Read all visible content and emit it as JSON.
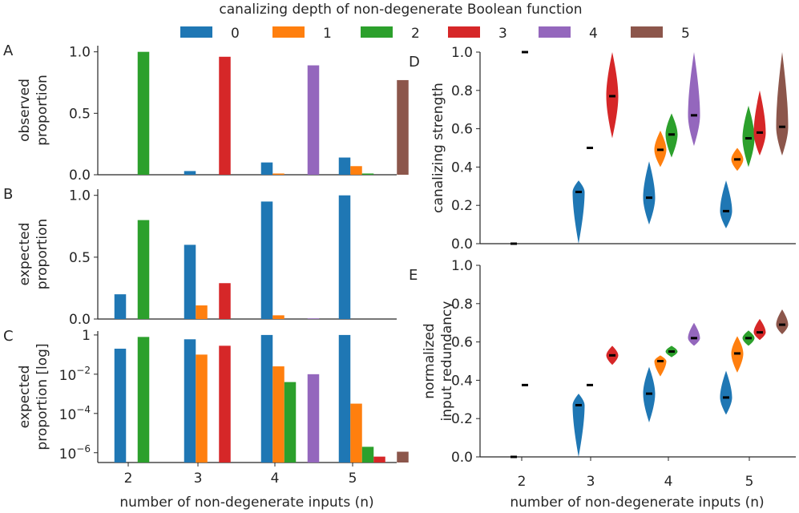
{
  "figure": {
    "legend_title": "canalizing depth of non-degenerate Boolean function",
    "legend_entries": [
      "0",
      "1",
      "2",
      "3",
      "4",
      "5"
    ],
    "colors": [
      "#1f77b4",
      "#ff7f0e",
      "#2ca02c",
      "#d62728",
      "#9467bd",
      "#8c564b"
    ],
    "panel_letters": [
      "A",
      "B",
      "C",
      "D",
      "E"
    ],
    "xlabel": "number of non-degenerate inputs (n)"
  },
  "chart_data": [
    {
      "panel": "A",
      "type": "bar",
      "ylabel": [
        "observed",
        "proportion"
      ],
      "categories": [
        "2",
        "3",
        "4",
        "5"
      ],
      "ylim": [
        0,
        1.05
      ],
      "yticks": [
        "0.0",
        "0.5",
        "1.0"
      ],
      "series": [
        {
          "name": "0",
          "values": [
            0,
            0.03,
            0.1,
            0.14
          ]
        },
        {
          "name": "1",
          "values": [
            0,
            0,
            0.01,
            0.07
          ]
        },
        {
          "name": "2",
          "values": [
            1.0,
            0,
            0,
            0.01
          ]
        },
        {
          "name": "3",
          "values": [
            0,
            0.96,
            0,
            0
          ]
        },
        {
          "name": "4",
          "values": [
            0,
            0,
            0.89,
            0
          ]
        },
        {
          "name": "5",
          "values": [
            0,
            0,
            0,
            0.77
          ]
        }
      ]
    },
    {
      "panel": "B",
      "type": "bar",
      "ylabel": [
        "expected",
        "proportion"
      ],
      "categories": [
        "2",
        "3",
        "4",
        "5"
      ],
      "ylim": [
        0,
        1.05
      ],
      "yticks": [
        "0.0",
        "0.5",
        "1.0"
      ],
      "series": [
        {
          "name": "0",
          "values": [
            0.2,
            0.6,
            0.95,
            1.0
          ]
        },
        {
          "name": "1",
          "values": [
            0,
            0.11,
            0.03,
            0
          ]
        },
        {
          "name": "2",
          "values": [
            0.8,
            0,
            0,
            0
          ]
        },
        {
          "name": "3",
          "values": [
            0,
            0.29,
            0,
            0
          ]
        },
        {
          "name": "4",
          "values": [
            0,
            0,
            0.005,
            0
          ]
        },
        {
          "name": "5",
          "values": [
            0,
            0,
            0,
            0
          ]
        }
      ]
    },
    {
      "panel": "C",
      "type": "bar",
      "ylabel": [
        "expected",
        "proportion [log]"
      ],
      "categories": [
        "2",
        "3",
        "4",
        "5"
      ],
      "log": true,
      "ylim_log10": [
        -6.5,
        0.2
      ],
      "yticks": [
        "1",
        "10^-2",
        "10^-4",
        "10^-6"
      ],
      "series": [
        {
          "name": "0",
          "log10_values": [
            -0.7,
            -0.22,
            0,
            0
          ]
        },
        {
          "name": "1",
          "log10_values": [
            null,
            -1.0,
            -1.6,
            -3.5
          ]
        },
        {
          "name": "2",
          "log10_values": [
            -0.1,
            null,
            -2.4,
            -5.7
          ]
        },
        {
          "name": "3",
          "log10_values": [
            null,
            -0.55,
            null,
            -6.2
          ]
        },
        {
          "name": "4",
          "log10_values": [
            null,
            null,
            -2.0,
            null
          ]
        },
        {
          "name": "5",
          "log10_values": [
            null,
            null,
            null,
            -5.95
          ]
        }
      ]
    },
    {
      "panel": "D",
      "type": "violin",
      "ylabel": [
        "canalizing strength"
      ],
      "categories": [
        "2",
        "3",
        "4",
        "5"
      ],
      "ylim": [
        0,
        1.0
      ],
      "yticks": [
        "0.0",
        "0.2",
        "0.4",
        "0.6",
        "0.8",
        "1.0"
      ],
      "groups": [
        {
          "n": 2,
          "depth": 0,
          "median": 0.0
        },
        {
          "n": 2,
          "depth": 1,
          "median": 1.0
        },
        {
          "n": 3,
          "depth": 0,
          "median": 0.27,
          "min": 0.0,
          "max": 0.33
        },
        {
          "n": 3,
          "depth": 1,
          "median": 0.5
        },
        {
          "n": 3,
          "depth": 3,
          "median": 0.77,
          "min": 0.55,
          "max": 1.0
        },
        {
          "n": 4,
          "depth": 0,
          "median": 0.24,
          "min": 0.1,
          "max": 0.43
        },
        {
          "n": 4,
          "depth": 1,
          "median": 0.49,
          "min": 0.4,
          "max": 0.59
        },
        {
          "n": 4,
          "depth": 2,
          "median": 0.57,
          "min": 0.45,
          "max": 0.68
        },
        {
          "n": 4,
          "depth": 4,
          "median": 0.67,
          "min": 0.51,
          "max": 1.0
        },
        {
          "n": 5,
          "depth": 0,
          "median": 0.17,
          "min": 0.08,
          "max": 0.33
        },
        {
          "n": 5,
          "depth": 1,
          "median": 0.44,
          "min": 0.38,
          "max": 0.5
        },
        {
          "n": 5,
          "depth": 2,
          "median": 0.55,
          "min": 0.4,
          "max": 0.72
        },
        {
          "n": 5,
          "depth": 3,
          "median": 0.58,
          "min": 0.46,
          "max": 0.8
        },
        {
          "n": 5,
          "depth": 5,
          "median": 0.61,
          "min": 0.46,
          "max": 1.0
        }
      ]
    },
    {
      "panel": "E",
      "type": "violin",
      "ylabel": [
        "normalized",
        "input redundancy"
      ],
      "categories": [
        "2",
        "3",
        "4",
        "5"
      ],
      "ylim": [
        0,
        1.0
      ],
      "yticks": [
        "0.0",
        "0.2",
        "0.4",
        "0.6",
        "0.8",
        "1.0"
      ],
      "groups": [
        {
          "n": 2,
          "depth": 0,
          "median": 0.0
        },
        {
          "n": 2,
          "depth": 1,
          "median": 0.375
        },
        {
          "n": 3,
          "depth": 0,
          "median": 0.27,
          "min": 0.0,
          "max": 0.33
        },
        {
          "n": 3,
          "depth": 1,
          "median": 0.375
        },
        {
          "n": 3,
          "depth": 3,
          "median": 0.53,
          "min": 0.48,
          "max": 0.58
        },
        {
          "n": 4,
          "depth": 0,
          "median": 0.33,
          "min": 0.18,
          "max": 0.47
        },
        {
          "n": 4,
          "depth": 1,
          "median": 0.5,
          "min": 0.42,
          "max": 0.53
        },
        {
          "n": 4,
          "depth": 2,
          "median": 0.55,
          "min": 0.52,
          "max": 0.58
        },
        {
          "n": 4,
          "depth": 4,
          "median": 0.62,
          "min": 0.58,
          "max": 0.7
        },
        {
          "n": 5,
          "depth": 0,
          "median": 0.31,
          "min": 0.22,
          "max": 0.45
        },
        {
          "n": 5,
          "depth": 1,
          "median": 0.54,
          "min": 0.44,
          "max": 0.63
        },
        {
          "n": 5,
          "depth": 2,
          "median": 0.62,
          "min": 0.58,
          "max": 0.66
        },
        {
          "n": 5,
          "depth": 3,
          "median": 0.65,
          "min": 0.61,
          "max": 0.72
        },
        {
          "n": 5,
          "depth": 5,
          "median": 0.69,
          "min": 0.64,
          "max": 0.77
        }
      ]
    }
  ]
}
